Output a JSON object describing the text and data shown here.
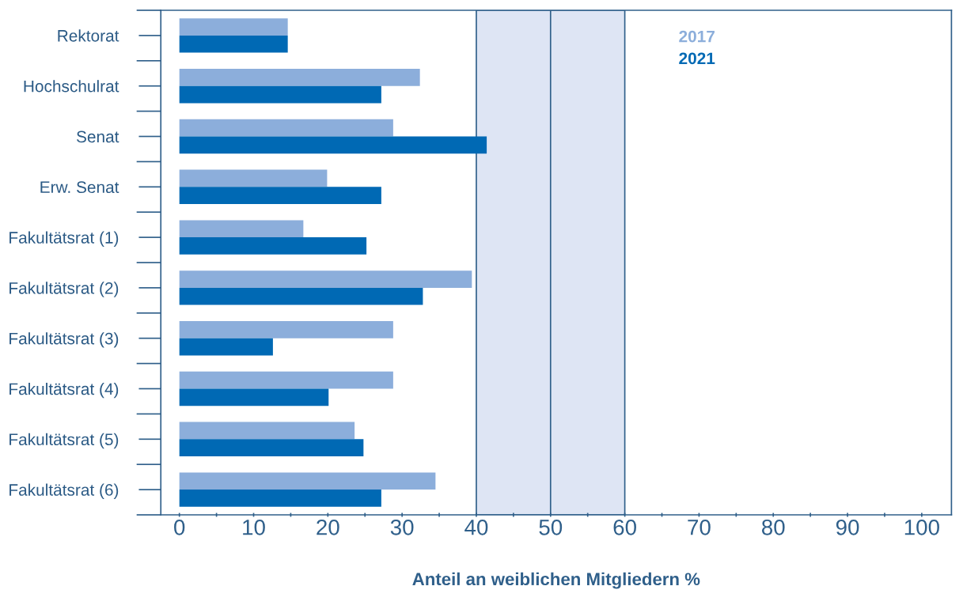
{
  "chart_data": {
    "type": "bar",
    "orientation": "horizontal",
    "xlabel": "Anteil an weiblichen Mitgliedern %",
    "categories": [
      "Rektorat",
      "Hochschulrat",
      "Senat",
      "Erw. Senat",
      "Fakultätsrat (1)",
      "Fakultätsrat (2)",
      "Fakultätsrat (3)",
      "Fakultätsrat (4)",
      "Fakultätsrat (5)",
      "Fakultätsrat (6)"
    ],
    "series": [
      {
        "name": "2017",
        "color": "#8caedb",
        "values": [
          14.6,
          32.4,
          28.8,
          19.9,
          16.7,
          39.4,
          28.8,
          28.8,
          23.6,
          34.5
        ]
      },
      {
        "name": "2021",
        "color": "#0069b4",
        "values": [
          14.6,
          27.2,
          41.4,
          27.2,
          25.2,
          32.8,
          12.6,
          20.1,
          24.8,
          27.2
        ]
      }
    ],
    "xlim": [
      -2.5,
      104
    ],
    "xticks": [
      0,
      {
        "value": 5,
        "label": null
      },
      10,
      {
        "value": 15,
        "label": null
      },
      20,
      {
        "value": 25,
        "label": null
      },
      30,
      {
        "value": 35,
        "label": null
      },
      40,
      {
        "value": 45,
        "label": null
      },
      50,
      {
        "value": 55,
        "label": null
      },
      60,
      {
        "value": 65,
        "label": null
      },
      70,
      {
        "value": 75,
        "label": null
      },
      80,
      {
        "value": 85,
        "label": null
      },
      90,
      {
        "value": 95,
        "label": null
      },
      100
    ],
    "bands": [
      {
        "axis": "x",
        "from": 40,
        "to": 60,
        "color": "#dee5f4"
      }
    ],
    "ref_lines": [
      {
        "axis": "x",
        "value": 50,
        "color": "#2f5f8a"
      }
    ],
    "grid": false,
    "legend": "top right"
  }
}
